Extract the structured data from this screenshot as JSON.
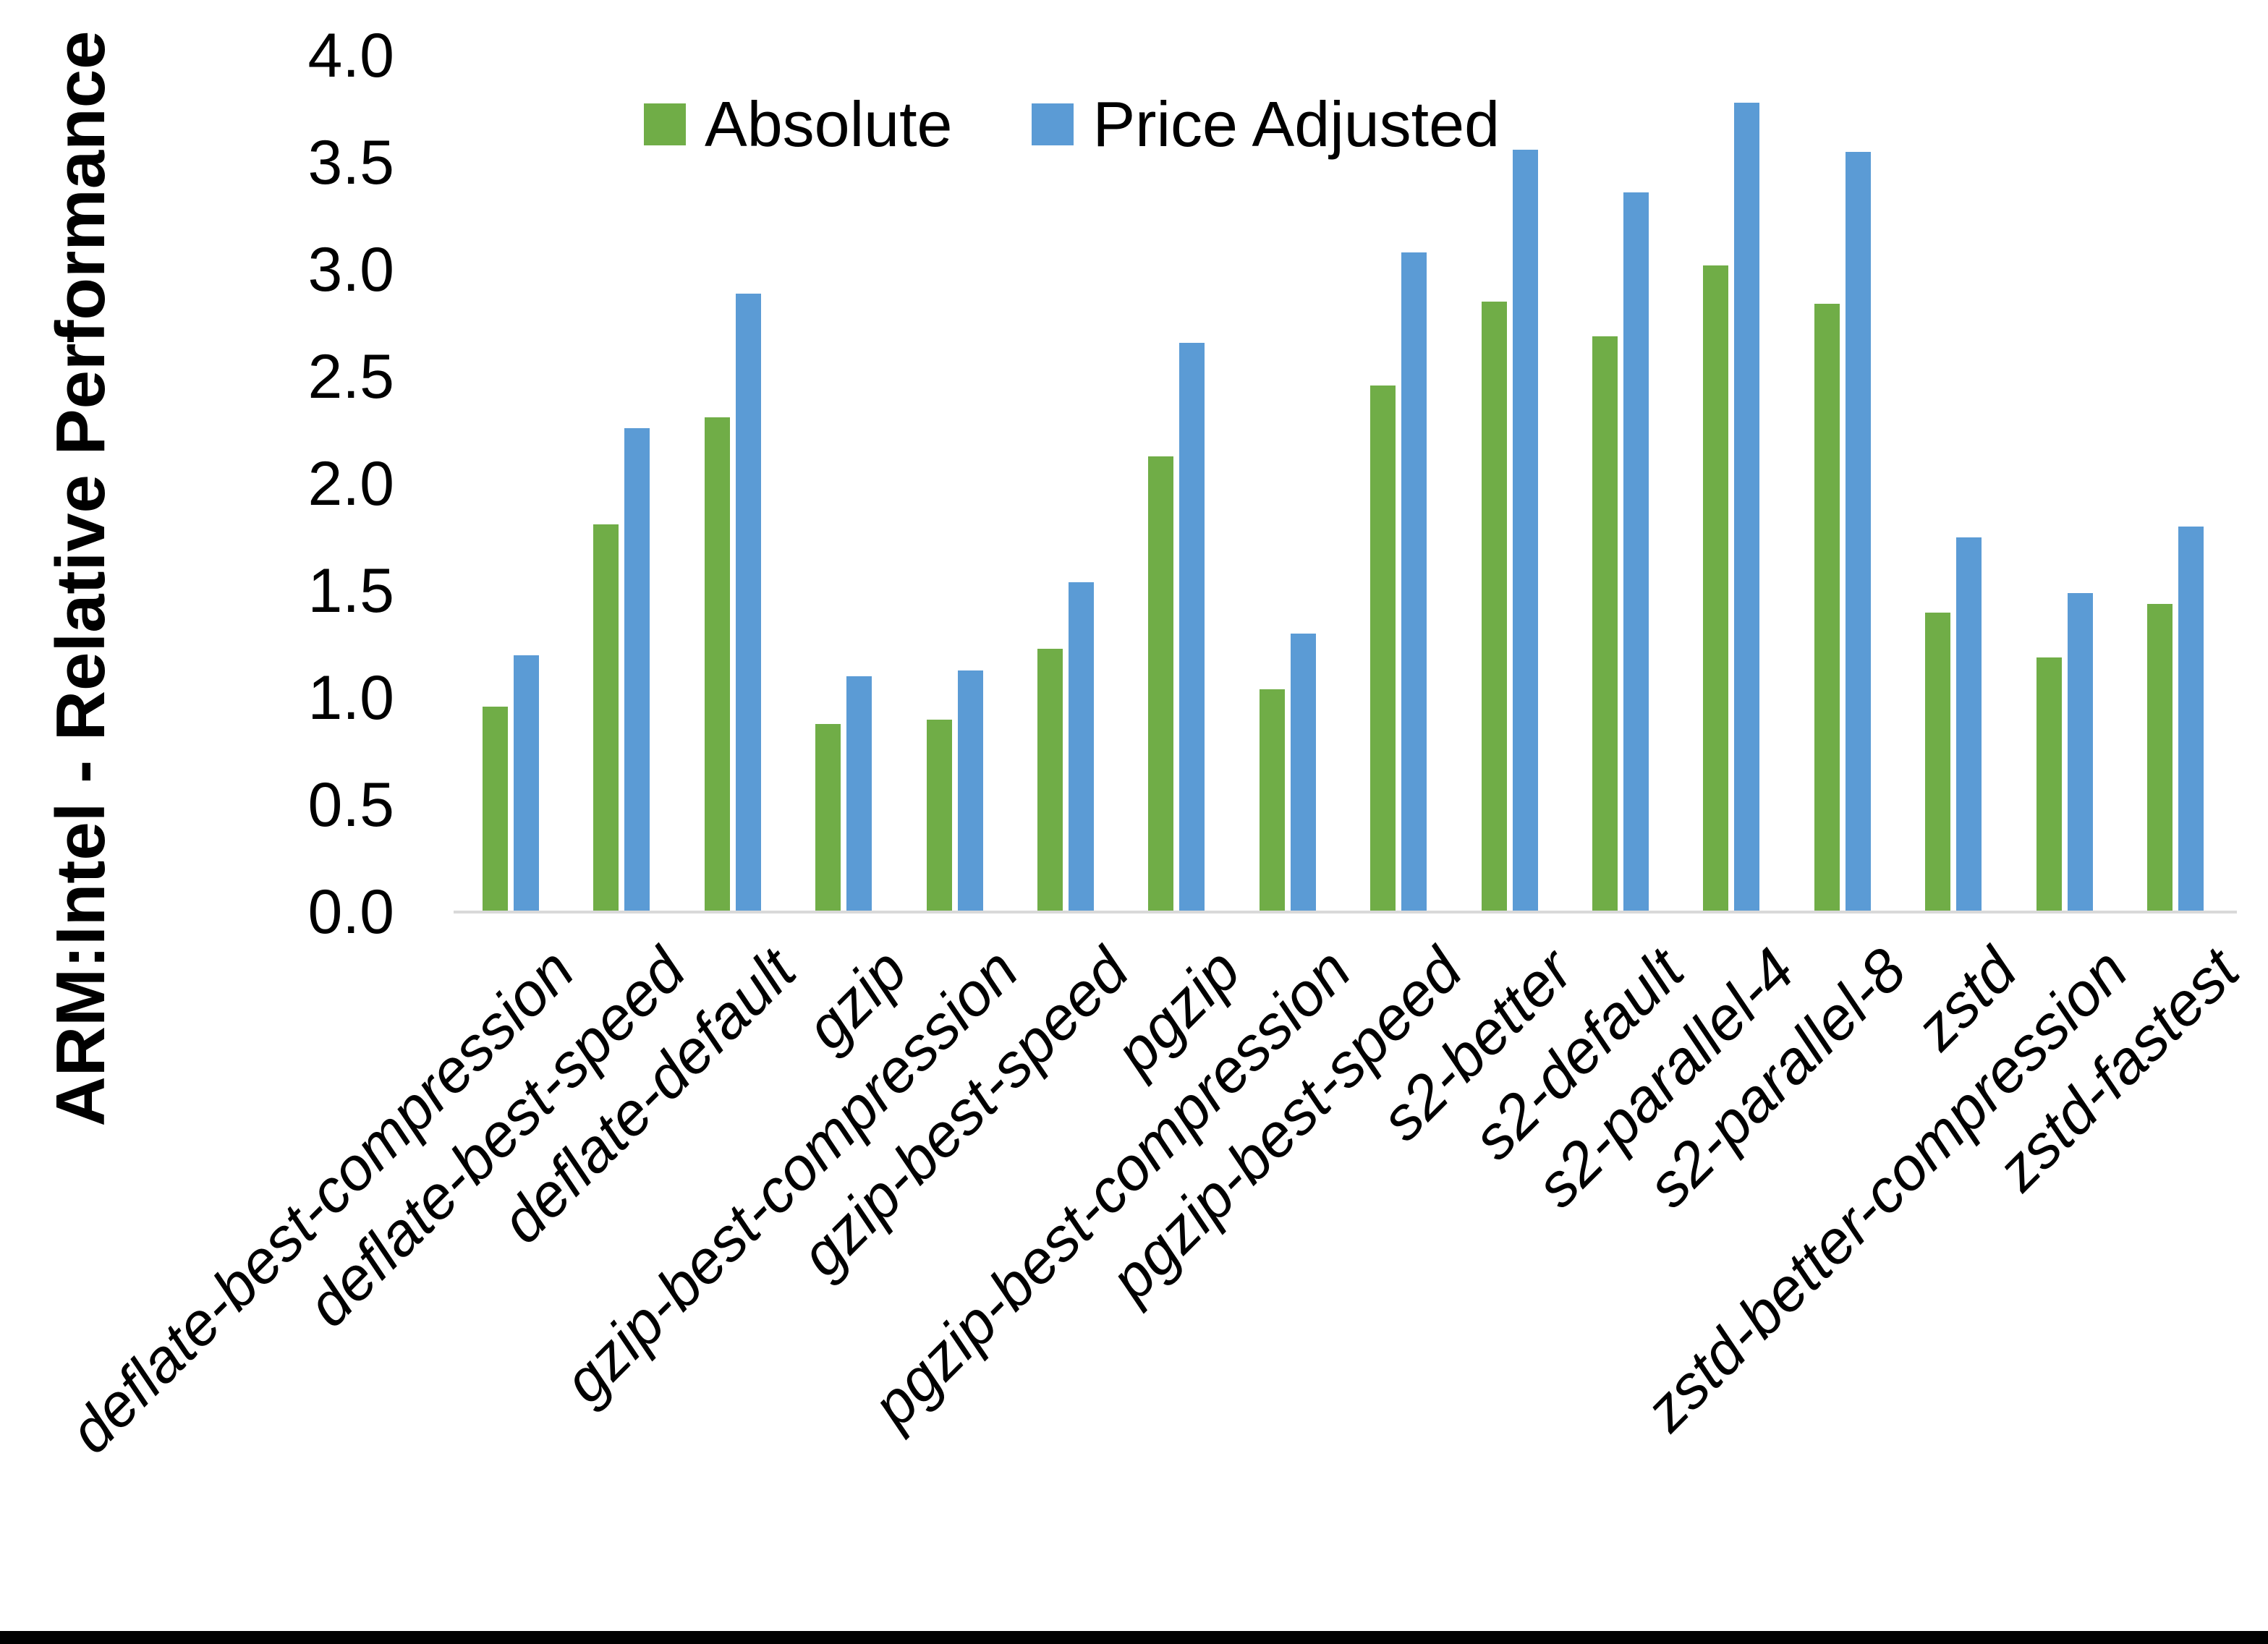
{
  "page": {
    "background": "#ffffff",
    "bottom_border_color": "#000000"
  },
  "axis": {
    "line_color": "#D9D9D9",
    "text_color": "#000000"
  },
  "legend": {
    "items": [
      {
        "label": "Absolute",
        "color": "#70AD47"
      },
      {
        "label": "Price Adjusted",
        "color": "#5B9BD5"
      }
    ]
  },
  "chart_data": {
    "type": "bar",
    "title": "",
    "xlabel": "",
    "ylabel": "ARM:Intel - Relative Performance",
    "ylim": [
      0.0,
      4.0
    ],
    "ytick_step": 0.5,
    "ytick_labels": [
      "0.0",
      "0.5",
      "1.0",
      "1.5",
      "2.0",
      "2.5",
      "3.0",
      "3.5",
      "4.0"
    ],
    "grid": false,
    "legend_position": "top-center",
    "categories": [
      "deflate-best-compression",
      "deflate-best-speed",
      "deflate-default",
      "gzip",
      "gzip-best-compression",
      "gzip-best-speed",
      "pgzip",
      "pgzip-best-compression",
      "pgzip-best-speed",
      "s2-better",
      "s2-default",
      "s2-parallel-4",
      "s2-parallel-8",
      "zstd",
      "zstd-better-compression",
      "zstd-fastest"
    ],
    "series": [
      {
        "name": "Absolute",
        "color": "#70AD47",
        "values": [
          0.96,
          1.81,
          2.31,
          0.88,
          0.9,
          1.23,
          2.13,
          1.04,
          2.46,
          2.85,
          2.69,
          3.02,
          2.84,
          1.4,
          1.19,
          1.44
        ]
      },
      {
        "name": "Price Adjusted",
        "color": "#5B9BD5",
        "values": [
          1.2,
          2.26,
          2.89,
          1.1,
          1.13,
          1.54,
          2.66,
          1.3,
          3.08,
          3.56,
          3.36,
          3.78,
          3.55,
          1.75,
          1.49,
          1.8
        ]
      }
    ]
  }
}
